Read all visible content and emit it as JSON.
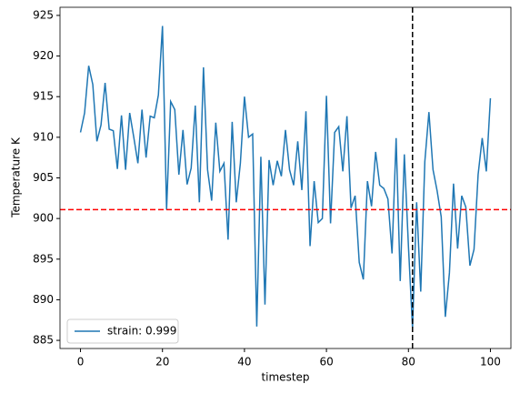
{
  "chart_data": {
    "type": "line",
    "x_label": "timestep",
    "y_label": "Temperature K",
    "x": [
      0,
      1,
      2,
      3,
      4,
      5,
      6,
      7,
      8,
      9,
      10,
      11,
      12,
      13,
      14,
      15,
      16,
      17,
      18,
      19,
      20,
      21,
      22,
      23,
      24,
      25,
      26,
      27,
      28,
      29,
      30,
      31,
      32,
      33,
      34,
      35,
      36,
      37,
      38,
      39,
      40,
      41,
      42,
      43,
      44,
      45,
      46,
      47,
      48,
      49,
      50,
      51,
      52,
      53,
      54,
      55,
      56,
      57,
      58,
      59,
      60,
      61,
      62,
      63,
      64,
      65,
      66,
      67,
      68,
      69,
      70,
      71,
      72,
      73,
      74,
      75,
      76,
      77,
      78,
      79,
      80,
      81,
      82,
      83,
      84,
      85,
      86,
      87,
      88,
      89,
      90,
      91,
      92,
      93,
      94,
      95,
      96,
      97,
      98,
      99,
      100
    ],
    "series": [
      {
        "name": "strain: 0.999",
        "color": "#1f77b4",
        "values": [
          910.6,
          913,
          918.8,
          916.5,
          909.5,
          911.5,
          916.7,
          911,
          910.8,
          906.1,
          912.7,
          906,
          913,
          910,
          906.8,
          913.4,
          907.5,
          912.6,
          912.4,
          915.2,
          923.7,
          901.1,
          914.4,
          913.4,
          905.4,
          910.9,
          904.2,
          906.2,
          913.9,
          902,
          918.6,
          906,
          902.2,
          911.8,
          905.8,
          906.8,
          897.4,
          911.9,
          902,
          906.8,
          915,
          910,
          910.4,
          886.7,
          907.6,
          889.4,
          907.2,
          904.1,
          907.1,
          905.2,
          910.9,
          906,
          904.1,
          909.5,
          903.5,
          913.2,
          896.6,
          904.6,
          899.5,
          900,
          915.1,
          899.4,
          910.6,
          911.3,
          905.8,
          912.6,
          901.3,
          902.8,
          894.6,
          892.5,
          904.6,
          901.5,
          908.2,
          904.1,
          903.7,
          902.4,
          895.7,
          909.9,
          892.3,
          907.9,
          896.6,
          886.5,
          902,
          891,
          907,
          913.1,
          906,
          903.4,
          900.2,
          887.9,
          893.3,
          904.3,
          896.3,
          902.8,
          901.4,
          894.2,
          896.2,
          905.4,
          909.9,
          905.8,
          914.8
        ]
      }
    ],
    "reference_lines": [
      {
        "axis": "y",
        "value": 901.1,
        "color": "#ff0000"
      },
      {
        "axis": "x",
        "value": 81,
        "color": "#000000"
      }
    ],
    "xlim": [
      -5,
      105
    ],
    "xticks": [
      0,
      20,
      40,
      60,
      80,
      100
    ],
    "ylim": [
      884,
      926
    ],
    "yticks": [
      885,
      890,
      895,
      900,
      905,
      910,
      915,
      920,
      925
    ],
    "legend": "lower left",
    "grid": false
  }
}
